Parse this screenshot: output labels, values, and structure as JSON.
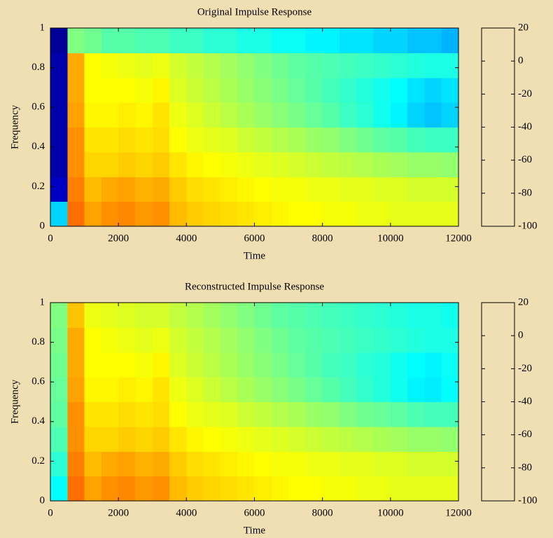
{
  "chart_data": [
    {
      "type": "heatmap",
      "title": "Original Impulse Response",
      "x_label": "Time",
      "y_label": "Frequency",
      "xlim": [
        0,
        12000
      ],
      "xticks": [
        0,
        2000,
        4000,
        6000,
        8000,
        10000,
        12000
      ],
      "ylim": [
        0,
        1
      ],
      "yticks": [
        0,
        0.2,
        0.4,
        0.6,
        0.8,
        1
      ],
      "clim": [
        -100,
        20
      ],
      "cticks": [
        -100,
        -80,
        -60,
        -40,
        -20,
        0,
        20
      ],
      "colormap": "jet",
      "z": [
        [
          -60,
          -92,
          -95,
          -95,
          -95,
          -95,
          -95,
          -97
        ],
        [
          -8,
          -10,
          -12,
          -12,
          -14,
          -15,
          -15,
          -40
        ],
        [
          -14,
          -17,
          -20,
          -22,
          -24,
          -25,
          -25,
          -42
        ],
        [
          -12,
          -15,
          -20,
          -22,
          -24,
          -25,
          -26,
          -45
        ],
        [
          -11,
          -14,
          -19,
          -21,
          -23,
          -25,
          -27,
          -45
        ],
        [
          -13,
          -16,
          -20,
          -22,
          -24,
          -26,
          -28,
          -46
        ],
        [
          -12,
          -15,
          -19,
          -21,
          -22,
          -24,
          -27,
          -46
        ],
        [
          -17,
          -19,
          -22,
          -25,
          -27,
          -29,
          -30,
          -48
        ],
        [
          -19,
          -21,
          -24,
          -27,
          -29,
          -31,
          -32,
          -48
        ],
        [
          -20,
          -22,
          -25,
          -28,
          -31,
          -33,
          -34,
          -50
        ],
        [
          -21,
          -23,
          -26,
          -29,
          -33,
          -35,
          -36,
          -50
        ],
        [
          -22,
          -24,
          -27,
          -31,
          -35,
          -37,
          -38,
          -52
        ],
        [
          -23,
          -25,
          -28,
          -32,
          -37,
          -39,
          -40,
          -52
        ],
        [
          -24,
          -26,
          -29,
          -34,
          -39,
          -41,
          -42,
          -54
        ],
        [
          -25,
          -26,
          -30,
          -35,
          -41,
          -43,
          -44,
          -54
        ],
        [
          -25,
          -27,
          -31,
          -37,
          -43,
          -45,
          -45,
          -56
        ],
        [
          -26,
          -27,
          -32,
          -38,
          -45,
          -47,
          -46,
          -56
        ],
        [
          -26,
          -28,
          -33,
          -40,
          -48,
          -49,
          -47,
          -58
        ],
        [
          -27,
          -28,
          -34,
          -42,
          -50,
          -51,
          -48,
          -58
        ],
        [
          -27,
          -29,
          -35,
          -44,
          -53,
          -53,
          -49,
          -60
        ],
        [
          -28,
          -29,
          -36,
          -45,
          -56,
          -55,
          -50,
          -60
        ],
        [
          -28,
          -30,
          -37,
          -47,
          -60,
          -58,
          -51,
          -62
        ],
        [
          -28,
          -30,
          -37,
          -48,
          -62,
          -60,
          -52,
          -62
        ],
        [
          -28,
          -30,
          -38,
          -48,
          -60,
          -58,
          -52,
          -64
        ]
      ]
    },
    {
      "type": "heatmap",
      "title": "Reconstructed Impulse Response",
      "x_label": "Time",
      "y_label": "Frequency",
      "xlim": [
        0,
        12000
      ],
      "xticks": [
        0,
        2000,
        4000,
        6000,
        8000,
        10000,
        12000
      ],
      "ylim": [
        0,
        1
      ],
      "yticks": [
        0,
        0.2,
        0.4,
        0.6,
        0.8,
        1
      ],
      "clim": [
        -100,
        20
      ],
      "cticks": [
        -100,
        -80,
        -60,
        -40,
        -20,
        0,
        20
      ],
      "colormap": "jet",
      "z": [
        [
          -55,
          -50,
          -46,
          -44,
          -43,
          -42,
          -41,
          -40
        ],
        [
          -8,
          -10,
          -12,
          -12,
          -14,
          -15,
          -15,
          -18
        ],
        [
          -14,
          -17,
          -20,
          -22,
          -24,
          -25,
          -25,
          -27
        ],
        [
          -12,
          -15,
          -20,
          -22,
          -24,
          -25,
          -26,
          -28
        ],
        [
          -11,
          -14,
          -19,
          -21,
          -23,
          -25,
          -27,
          -29
        ],
        [
          -13,
          -16,
          -20,
          -22,
          -24,
          -26,
          -28,
          -30
        ],
        [
          -12,
          -15,
          -19,
          -21,
          -22,
          -24,
          -27,
          -30
        ],
        [
          -17,
          -19,
          -22,
          -25,
          -27,
          -29,
          -30,
          -32
        ],
        [
          -19,
          -21,
          -24,
          -27,
          -29,
          -31,
          -32,
          -34
        ],
        [
          -20,
          -22,
          -25,
          -28,
          -31,
          -33,
          -34,
          -36
        ],
        [
          -21,
          -23,
          -26,
          -29,
          -33,
          -35,
          -36,
          -38
        ],
        [
          -22,
          -24,
          -27,
          -31,
          -35,
          -37,
          -38,
          -40
        ],
        [
          -23,
          -25,
          -28,
          -32,
          -37,
          -39,
          -40,
          -42
        ],
        [
          -24,
          -26,
          -29,
          -34,
          -39,
          -41,
          -42,
          -44
        ],
        [
          -25,
          -26,
          -30,
          -35,
          -41,
          -43,
          -44,
          -45
        ],
        [
          -25,
          -27,
          -31,
          -37,
          -43,
          -45,
          -45,
          -46
        ],
        [
          -26,
          -27,
          -32,
          -38,
          -45,
          -47,
          -46,
          -47
        ],
        [
          -26,
          -28,
          -33,
          -40,
          -47,
          -48,
          -47,
          -48
        ],
        [
          -27,
          -28,
          -34,
          -42,
          -49,
          -50,
          -48,
          -49
        ],
        [
          -27,
          -29,
          -35,
          -43,
          -51,
          -51,
          -49,
          -50
        ],
        [
          -28,
          -29,
          -36,
          -44,
          -53,
          -53,
          -50,
          -51
        ],
        [
          -28,
          -30,
          -37,
          -46,
          -56,
          -55,
          -51,
          -52
        ],
        [
          -28,
          -30,
          -37,
          -47,
          -57,
          -56,
          -52,
          -52
        ],
        [
          -28,
          -30,
          -38,
          -47,
          -55,
          -54,
          -52,
          -53
        ]
      ]
    }
  ]
}
